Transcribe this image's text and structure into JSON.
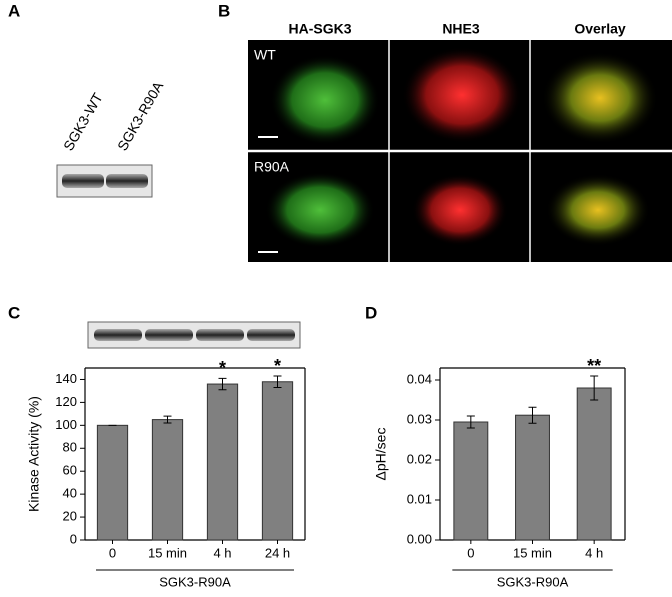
{
  "panels": {
    "a": "A",
    "b": "B",
    "c": "C",
    "d": "D"
  },
  "blot_labels": [
    "SGK3-WT",
    "SGK3-R90A"
  ],
  "microscopy": {
    "columns": [
      "HA-SGK3",
      "NHE3",
      "Overlay"
    ],
    "rows": [
      "WT",
      "R90A"
    ]
  },
  "chart_data": [
    {
      "type": "bar",
      "ylabel": "Kinase Activity (%)",
      "categories": [
        "0",
        "15 min",
        "4 h",
        "24 h"
      ],
      "values": [
        100,
        105,
        136,
        138
      ],
      "errors": [
        0,
        3,
        5,
        5
      ],
      "color": "#808080",
      "ylim": [
        0,
        150
      ],
      "yticks": [
        0,
        20,
        40,
        60,
        80,
        100,
        120,
        140
      ],
      "annotations": [
        {
          "category": "4 h",
          "text": "*"
        },
        {
          "category": "24 h",
          "text": "*"
        }
      ],
      "group_label": "SGK3-R90A"
    },
    {
      "type": "bar",
      "ylabel": "ΔpH/sec",
      "categories": [
        "0",
        "15 min",
        "4 h"
      ],
      "values": [
        0.0295,
        0.0312,
        0.038
      ],
      "errors": [
        0.0015,
        0.002,
        0.003
      ],
      "color": "#808080",
      "ylim": [
        0,
        0.043
      ],
      "yticks": [
        {
          "value": 0,
          "label": "0.00"
        },
        0.01,
        0.02,
        0.03,
        0.04
      ],
      "annotations": [
        {
          "category": "4 h",
          "text": "**"
        }
      ],
      "group_label": "SGK3-R90A"
    }
  ]
}
